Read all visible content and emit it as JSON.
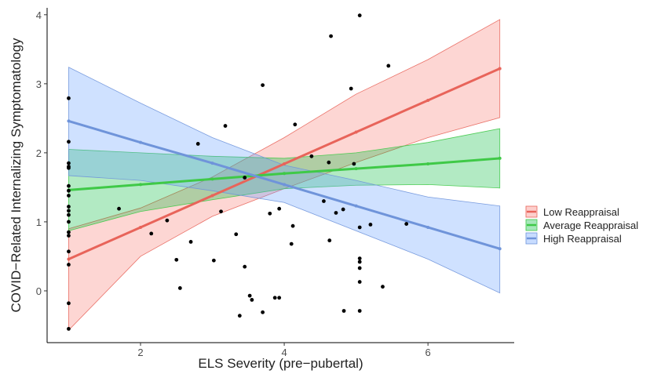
{
  "chart_data": {
    "type": "scatter",
    "title": "",
    "xlabel": "ELS Severity (pre−pubertal)",
    "ylabel": "COVID−Related Internalizing Symptomatology",
    "xlim": [
      0.7,
      7.2
    ],
    "ylim": [
      -0.75,
      4.1
    ],
    "x_ticks": [
      2,
      4,
      6
    ],
    "y_ticks": [
      0,
      1,
      2,
      3,
      4
    ],
    "x_tick_labels": [
      "2",
      "4",
      "6"
    ],
    "y_tick_labels": [
      "0",
      "1",
      "2",
      "3",
      "4"
    ],
    "grid": false,
    "legend_position": "right",
    "points": [
      {
        "x": 1.0,
        "y": 2.79
      },
      {
        "x": 1.0,
        "y": 2.16
      },
      {
        "x": 1.0,
        "y": 1.85
      },
      {
        "x": 1.0,
        "y": 1.8
      },
      {
        "x": 1.0,
        "y": 1.78
      },
      {
        "x": 1.0,
        "y": 1.52
      },
      {
        "x": 1.0,
        "y": 1.45
      },
      {
        "x": 1.0,
        "y": 1.38
      },
      {
        "x": 1.0,
        "y": 1.22
      },
      {
        "x": 1.0,
        "y": 1.16
      },
      {
        "x": 1.0,
        "y": 1.1
      },
      {
        "x": 1.0,
        "y": 1.0
      },
      {
        "x": 1.0,
        "y": 0.85
      },
      {
        "x": 1.0,
        "y": 0.8
      },
      {
        "x": 1.0,
        "y": 0.57
      },
      {
        "x": 1.0,
        "y": 0.38
      },
      {
        "x": 1.0,
        "y": -0.18
      },
      {
        "x": 1.0,
        "y": -0.55
      },
      {
        "x": 1.7,
        "y": 1.19
      },
      {
        "x": 2.15,
        "y": 0.83
      },
      {
        "x": 2.37,
        "y": 1.02
      },
      {
        "x": 2.5,
        "y": 0.45
      },
      {
        "x": 2.55,
        "y": 0.04
      },
      {
        "x": 2.7,
        "y": 0.71
      },
      {
        "x": 2.8,
        "y": 2.13
      },
      {
        "x": 3.02,
        "y": 0.44
      },
      {
        "x": 3.12,
        "y": 1.15
      },
      {
        "x": 3.18,
        "y": 2.39
      },
      {
        "x": 3.33,
        "y": 0.82
      },
      {
        "x": 3.38,
        "y": -0.36
      },
      {
        "x": 3.45,
        "y": 1.64
      },
      {
        "x": 3.45,
        "y": 0.35
      },
      {
        "x": 3.52,
        "y": -0.07
      },
      {
        "x": 3.55,
        "y": -0.13
      },
      {
        "x": 3.7,
        "y": 2.98
      },
      {
        "x": 3.7,
        "y": -0.31
      },
      {
        "x": 3.8,
        "y": 1.12
      },
      {
        "x": 3.87,
        "y": -0.1
      },
      {
        "x": 3.93,
        "y": 1.19
      },
      {
        "x": 3.93,
        "y": -0.1
      },
      {
        "x": 4.1,
        "y": 0.68
      },
      {
        "x": 4.12,
        "y": 0.94
      },
      {
        "x": 4.15,
        "y": 2.41
      },
      {
        "x": 4.38,
        "y": 1.95
      },
      {
        "x": 4.55,
        "y": 1.3
      },
      {
        "x": 4.62,
        "y": 1.86
      },
      {
        "x": 4.63,
        "y": 0.73
      },
      {
        "x": 4.65,
        "y": 3.69
      },
      {
        "x": 4.72,
        "y": 1.13
      },
      {
        "x": 4.82,
        "y": 1.18
      },
      {
        "x": 4.83,
        "y": -0.29
      },
      {
        "x": 4.93,
        "y": 2.93
      },
      {
        "x": 4.97,
        "y": 1.84
      },
      {
        "x": 5.05,
        "y": 3.99
      },
      {
        "x": 5.05,
        "y": 0.92
      },
      {
        "x": 5.05,
        "y": 0.47
      },
      {
        "x": 5.05,
        "y": 0.42
      },
      {
        "x": 5.05,
        "y": 0.33
      },
      {
        "x": 5.05,
        "y": 0.13
      },
      {
        "x": 5.05,
        "y": -0.29
      },
      {
        "x": 5.2,
        "y": 0.96
      },
      {
        "x": 5.37,
        "y": 0.06
      },
      {
        "x": 5.45,
        "y": 3.26
      },
      {
        "x": 5.7,
        "y": 0.97
      }
    ],
    "series": [
      {
        "name": "Low Reappraisal",
        "color": "#F8766D",
        "line_color": "#E8645A",
        "x": [
          1,
          2,
          3,
          4,
          5,
          6,
          7
        ],
        "y": [
          0.46,
          0.92,
          1.38,
          1.84,
          2.3,
          2.76,
          3.22
        ],
        "upper": [
          0.9,
          1.2,
          1.65,
          2.22,
          2.85,
          3.35,
          3.93
        ],
        "lower": [
          -0.57,
          0.5,
          1.08,
          1.48,
          1.86,
          2.22,
          2.51
        ]
      },
      {
        "name": "Average Reappraisal",
        "color": "#00BA38",
        "line_color": "#3FC947",
        "x": [
          1,
          2,
          3,
          4,
          5,
          6,
          7
        ],
        "y": [
          1.46,
          1.54,
          1.62,
          1.7,
          1.77,
          1.84,
          1.92
        ],
        "upper": [
          2.05,
          2.0,
          1.95,
          1.92,
          2.0,
          2.15,
          2.35
        ],
        "lower": [
          0.87,
          1.15,
          1.32,
          1.48,
          1.53,
          1.54,
          1.49
        ]
      },
      {
        "name": "High Reappraisal",
        "color": "#619CFF",
        "line_color": "#6F94DA",
        "x": [
          1,
          2,
          3,
          4,
          5,
          6,
          7
        ],
        "y": [
          2.46,
          2.15,
          1.85,
          1.54,
          1.23,
          0.92,
          0.61
        ],
        "upper": [
          3.24,
          2.72,
          2.22,
          1.82,
          1.6,
          1.36,
          1.23
        ],
        "lower": [
          1.67,
          1.6,
          1.45,
          1.28,
          0.87,
          0.46,
          -0.03
        ]
      }
    ]
  }
}
